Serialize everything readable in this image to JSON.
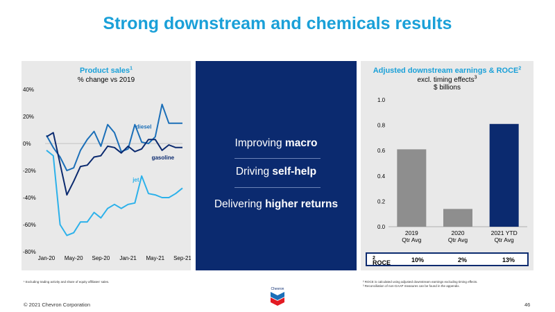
{
  "slide": {
    "title": "Strong downstream and chemicals results",
    "copyright": "© 2021 Chevron Corporation",
    "page_number": "46",
    "logo_text": "Chevron"
  },
  "left_panel": {
    "title": "Product sales",
    "title_sup": "1",
    "subtitle": "% change vs 2019",
    "footnote": "¹ Excluding trading activity and share of equity affiliates' sales."
  },
  "middle_panel": {
    "lines": [
      {
        "pre": "Improving ",
        "bold": "macro"
      },
      {
        "pre": "Driving ",
        "bold": "self-help"
      },
      {
        "pre": "Delivering ",
        "bold": "higher returns"
      }
    ]
  },
  "right_panel": {
    "title": "Adjusted downstream earnings & ROCE",
    "title_sup": "2",
    "subtitle1": "excl. timing effects",
    "subtitle1_sup": "3",
    "subtitle2": "$ billions",
    "roce": {
      "label": "ROCE",
      "label_sup": "2",
      "values": [
        "10%",
        "2%",
        "13%"
      ]
    },
    "footnotes": [
      "² ROCE is calculated using adjusted downstream earnings excluding timing effects.",
      "³ Reconciliation of non-GAAP measures can be found in the appendix."
    ]
  },
  "chart_data": [
    {
      "type": "line",
      "title": "Product sales",
      "subtitle": "% change vs 2019",
      "ylim": [
        -80,
        40
      ],
      "yticks": [
        "40%",
        "20%",
        "0%",
        "-20%",
        "-40%",
        "-60%",
        "-80%"
      ],
      "ytick_values": [
        40,
        20,
        0,
        -20,
        -40,
        -60,
        -80
      ],
      "xticks": [
        "Jan-20",
        "May-20",
        "Sep-20",
        "Jan-21",
        "May-21",
        "Sep-21"
      ],
      "x": [
        "Jan-20",
        "Feb-20",
        "Mar-20",
        "Apr-20",
        "May-20",
        "Jun-20",
        "Jul-20",
        "Aug-20",
        "Sep-20",
        "Oct-20",
        "Nov-20",
        "Dec-20",
        "Jan-21",
        "Feb-21",
        "Mar-21",
        "Apr-21",
        "May-21",
        "Jun-21",
        "Jul-21",
        "Aug-21",
        "Sep-21"
      ],
      "series": [
        {
          "name": "diesel",
          "color": "#1b6fb8",
          "values": [
            6,
            -3,
            -10,
            -20,
            -18,
            -5,
            3,
            9,
            -2,
            14,
            8,
            -6,
            -4,
            14,
            1,
            0,
            5,
            29,
            15,
            15,
            15
          ]
        },
        {
          "name": "gasoline",
          "color": "#0b2a6f",
          "values": [
            5,
            8,
            -15,
            -38,
            -28,
            -17,
            -16,
            -10,
            -9,
            -2,
            -3,
            -7,
            -2,
            -6,
            -4,
            3,
            3,
            -5,
            -1,
            -3,
            -3
          ]
        },
        {
          "name": "jet",
          "color": "#2cb1ea",
          "values": [
            -5,
            -9,
            -60,
            -68,
            -66,
            -58,
            -58,
            -51,
            -55,
            -48,
            -45,
            -48,
            -45,
            -44,
            -24,
            -37,
            -38,
            -40,
            -40,
            -37,
            -33
          ]
        }
      ]
    },
    {
      "type": "bar",
      "title": "Adjusted downstream earnings & ROCE",
      "categories": [
        [
          "2019",
          "Qtr Avg"
        ],
        [
          "2020",
          "Qtr Avg"
        ],
        [
          "2021 YTD",
          "Qtr Avg"
        ]
      ],
      "values": [
        0.61,
        0.14,
        0.81
      ],
      "colors": [
        "#8e8e8e",
        "#8e8e8e",
        "#0b2a6f"
      ],
      "ylim": [
        0,
        1.0
      ],
      "yticks": [
        "1.0",
        "0.8",
        "0.6",
        "0.4",
        "0.2",
        "0.0"
      ],
      "ytick_values": [
        1.0,
        0.8,
        0.6,
        0.4,
        0.2,
        0.0
      ],
      "ylabel": "$ billions"
    }
  ]
}
